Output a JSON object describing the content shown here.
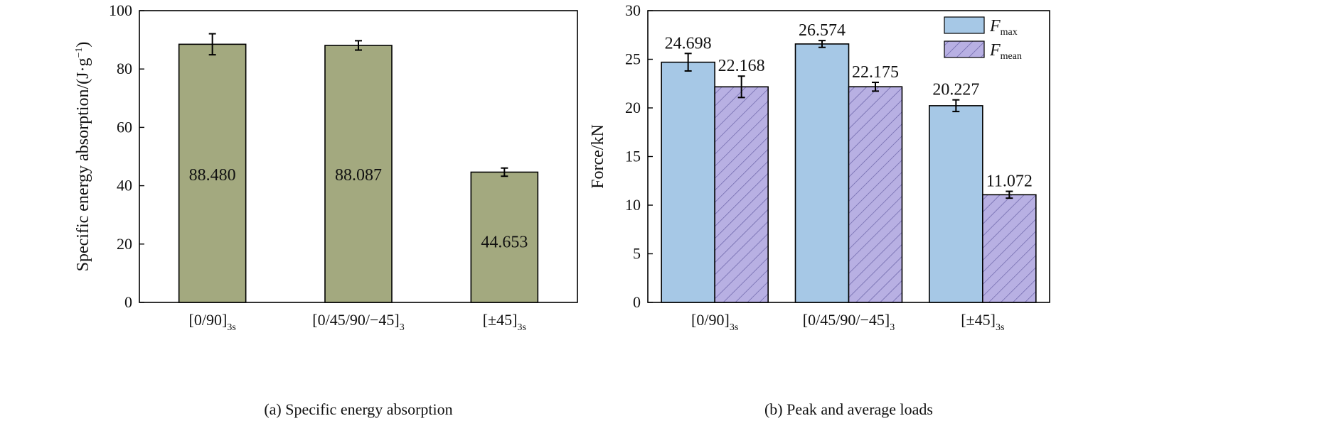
{
  "colors": {
    "sea_bar": "#A3A97F",
    "fmax_bar": "#A6C8E6",
    "fmean_bar": "#B8B0E3",
    "hatch": "#6A63A8",
    "axis": "#000000"
  },
  "chart_data": [
    {
      "id": "a",
      "type": "bar",
      "caption": "(a) Specific energy absorption",
      "ylabel": "Specific energy absorption/(J·g⁻¹)",
      "ylabel_main": "Specific energy absorption/(J·g",
      "ylabel_sup": "−1",
      "ylabel_tail": ")",
      "ylim": [
        0,
        100
      ],
      "yticks": [
        0,
        20,
        40,
        60,
        80,
        100
      ],
      "categories": [
        {
          "main": "[0/90]",
          "sub": "3s"
        },
        {
          "main": "[0/45/90/−45]",
          "sub": "3"
        },
        {
          "main": "[±45]",
          "sub": "3s"
        }
      ],
      "series": [
        {
          "values": [
            88.48,
            88.087,
            44.653
          ],
          "errors": [
            3.6,
            1.6,
            1.4
          ]
        }
      ],
      "value_labels": [
        "88.480",
        "88.087",
        "44.653"
      ],
      "label_values": [
        44,
        44,
        21
      ]
    },
    {
      "id": "b",
      "type": "bar",
      "caption": "(b) Peak and average loads",
      "ylabel": "Force/kN",
      "ylim": [
        0,
        30
      ],
      "yticks": [
        0,
        5,
        10,
        15,
        20,
        25,
        30
      ],
      "categories": [
        {
          "main": "[0/90]",
          "sub": "3s"
        },
        {
          "main": "[0/45/90/−45]",
          "sub": "3"
        },
        {
          "main": "[±45]",
          "sub": "3s"
        }
      ],
      "series": [
        {
          "name_main": "F",
          "name_sub": "max",
          "values": [
            24.698,
            26.574,
            20.227
          ],
          "errors": [
            0.9,
            0.35,
            0.6
          ]
        },
        {
          "name_main": "F",
          "name_sub": "mean",
          "values": [
            22.168,
            22.175,
            11.072
          ],
          "errors": [
            1.1,
            0.45,
            0.35
          ]
        }
      ],
      "value_labels": [
        [
          "24.698",
          "26.574",
          "20.227"
        ],
        [
          "22.168",
          "22.175",
          "11.072"
        ]
      ],
      "legend": "top-right"
    }
  ]
}
